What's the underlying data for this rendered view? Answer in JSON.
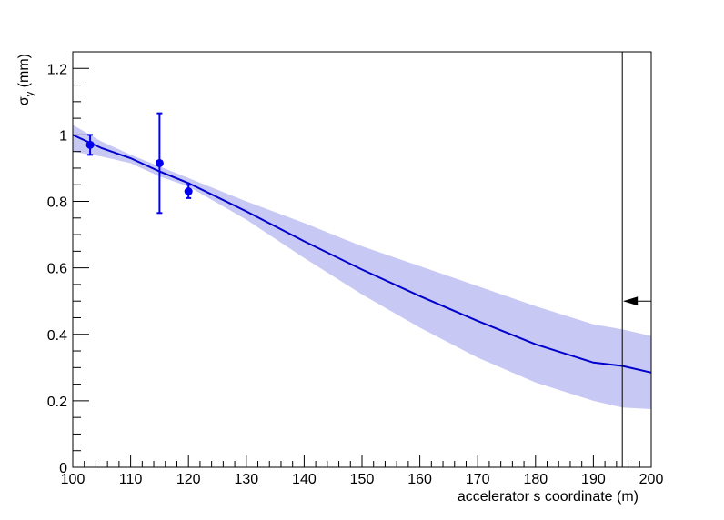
{
  "chart_data": {
    "type": "line",
    "title": "",
    "xlabel": "accelerator s coordinate (m)",
    "ylabel": {
      "main": "σ",
      "sub": "y",
      "unit": " (mm)"
    },
    "xlim": [
      100,
      200
    ],
    "ylim": [
      0,
      1.25
    ],
    "x_ticks": [
      100,
      110,
      120,
      130,
      140,
      150,
      160,
      170,
      180,
      190,
      200
    ],
    "x_tick_labels": [
      "100",
      "110",
      "120",
      "130",
      "140",
      "150",
      "160",
      "170",
      "180",
      "190",
      "200"
    ],
    "y_ticks": [
      0,
      0.2,
      0.4,
      0.6,
      0.8,
      1.0,
      1.2
    ],
    "y_tick_labels": [
      "0",
      "0.2",
      "0.4",
      "0.6",
      "0.8",
      "1",
      "1.2"
    ],
    "grid": false,
    "measurements": [
      {
        "x": 103,
        "y": 0.97,
        "err": 0.03
      },
      {
        "x": 115,
        "y": 0.915,
        "err": 0.15
      },
      {
        "x": 120,
        "y": 0.83,
        "err": 0.02
      }
    ],
    "fit_curve": {
      "x": [
        100,
        105,
        110,
        115,
        120,
        130,
        140,
        150,
        160,
        170,
        180,
        190,
        195,
        200
      ],
      "y": [
        1.0,
        0.96,
        0.93,
        0.89,
        0.855,
        0.77,
        0.68,
        0.595,
        0.515,
        0.44,
        0.37,
        0.315,
        0.305,
        0.285
      ]
    },
    "band": {
      "x": [
        100,
        105,
        110,
        115,
        120,
        130,
        140,
        150,
        160,
        170,
        180,
        190,
        195,
        200
      ],
      "upper": [
        1.03,
        0.98,
        0.94,
        0.905,
        0.87,
        0.8,
        0.735,
        0.665,
        0.605,
        0.545,
        0.485,
        0.43,
        0.415,
        0.395
      ],
      "lower": [
        0.95,
        0.935,
        0.915,
        0.875,
        0.845,
        0.745,
        0.63,
        0.52,
        0.42,
        0.33,
        0.255,
        0.2,
        0.18,
        0.175
      ]
    },
    "marker_line": {
      "x": 195,
      "arrow_y": 0.5
    },
    "colors": {
      "curve": "#0000cc",
      "band": "#c8c8f5",
      "points": "#0000ee",
      "axis": "#000000"
    }
  }
}
